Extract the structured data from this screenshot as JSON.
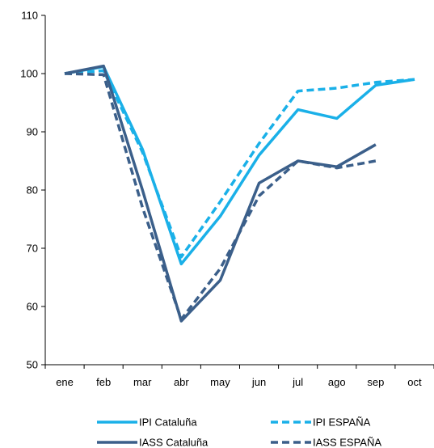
{
  "chart_data": {
    "type": "line",
    "title": "",
    "xlabel": "",
    "ylabel": "",
    "categories": [
      "ene",
      "feb",
      "mar",
      "abr",
      "may",
      "jun",
      "jul",
      "ago",
      "sep",
      "oct"
    ],
    "ylim": [
      50,
      110
    ],
    "yticks": [
      50,
      60,
      70,
      80,
      90,
      100,
      110
    ],
    "grid": false,
    "legend_position": "bottom",
    "series": [
      {
        "name": "IPI Cataluña",
        "color": "#1ab0e8",
        "dashed": false,
        "values": [
          100,
          101.2,
          87,
          67.3,
          75.5,
          86,
          93.8,
          92.3,
          98,
          99
        ]
      },
      {
        "name": "IPI ESPAÑA",
        "color": "#1ab0e8",
        "dashed": true,
        "values": [
          100,
          100.5,
          86.5,
          68.5,
          78,
          88,
          97,
          97.5,
          98.5,
          99
        ]
      },
      {
        "name": "IASS Cataluña",
        "color": "#3b5f8a",
        "dashed": false,
        "values": [
          100,
          101.3,
          80,
          57.5,
          64.5,
          81.2,
          85,
          84,
          87.8,
          null
        ]
      },
      {
        "name": "IASS ESPAÑA",
        "color": "#3b5f8a",
        "dashed": true,
        "values": [
          100,
          99.8,
          77,
          57.8,
          66.5,
          79,
          85,
          83.8,
          85,
          null
        ]
      }
    ]
  }
}
